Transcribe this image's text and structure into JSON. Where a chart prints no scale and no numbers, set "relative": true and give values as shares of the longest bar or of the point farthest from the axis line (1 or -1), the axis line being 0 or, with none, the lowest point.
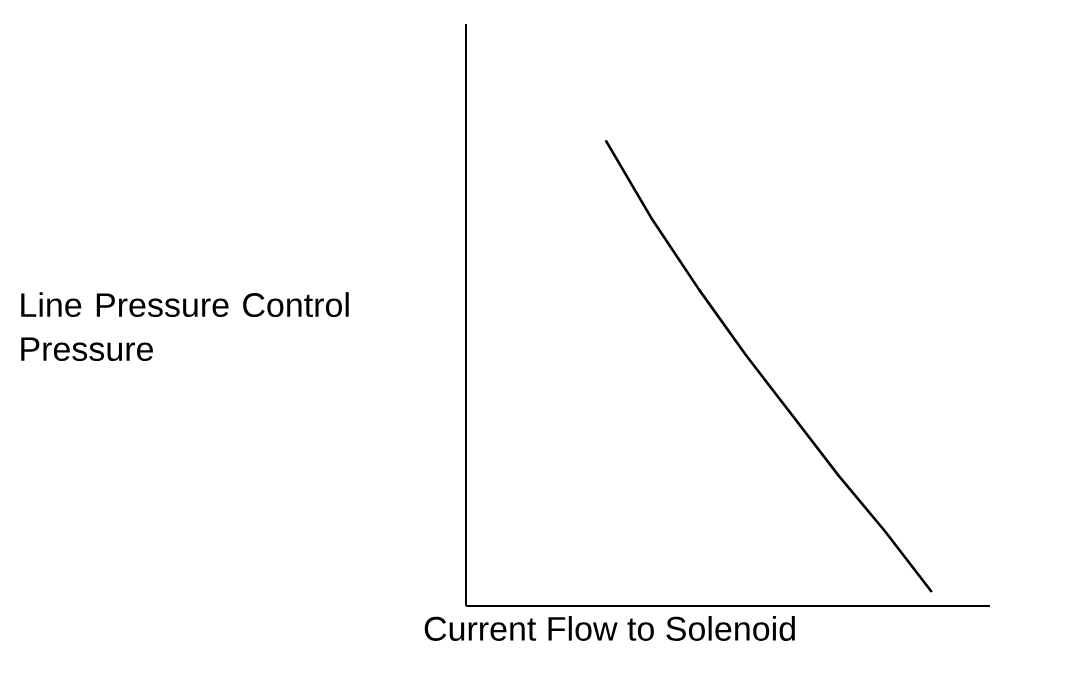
{
  "chart_data": {
    "type": "line",
    "relative": true,
    "xlabel": "Current Flow to Solenoid",
    "ylabel": "Line Pressure Control Pressure",
    "color": "#000000",
    "categories": [
      null,
      null,
      null,
      null,
      null,
      null,
      null,
      null,
      null,
      null,
      null,
      null
    ],
    "values": [
      null,
      null,
      null,
      1,
      0.83,
      0.68,
      0.54,
      0.41,
      0.28,
      0.16,
      0.03,
      null
    ]
  }
}
